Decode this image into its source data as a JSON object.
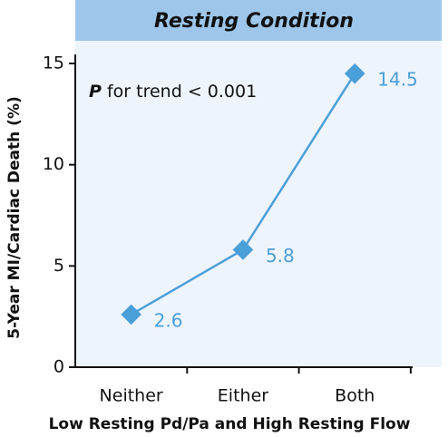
{
  "chart_data": {
    "type": "line",
    "title": "Resting Condition",
    "annotation": {
      "italic": "P",
      "text": "for trend < 0.001"
    },
    "xlabel": "Low Resting Pd/Pa and High Resting Flow",
    "ylabel": "5-Year MI/Cardiac Death (%)",
    "categories": [
      "Neither",
      "Either",
      "Both"
    ],
    "series": [
      {
        "name": "Resting Condition",
        "color": "#4b9fd9",
        "values": [
          2.6,
          5.8,
          14.5
        ]
      }
    ],
    "ylim": [
      0,
      15
    ],
    "yticks": [
      0,
      5,
      10,
      15
    ],
    "banner_color": "#9ec6ea",
    "background_color": "#eef4fb"
  }
}
